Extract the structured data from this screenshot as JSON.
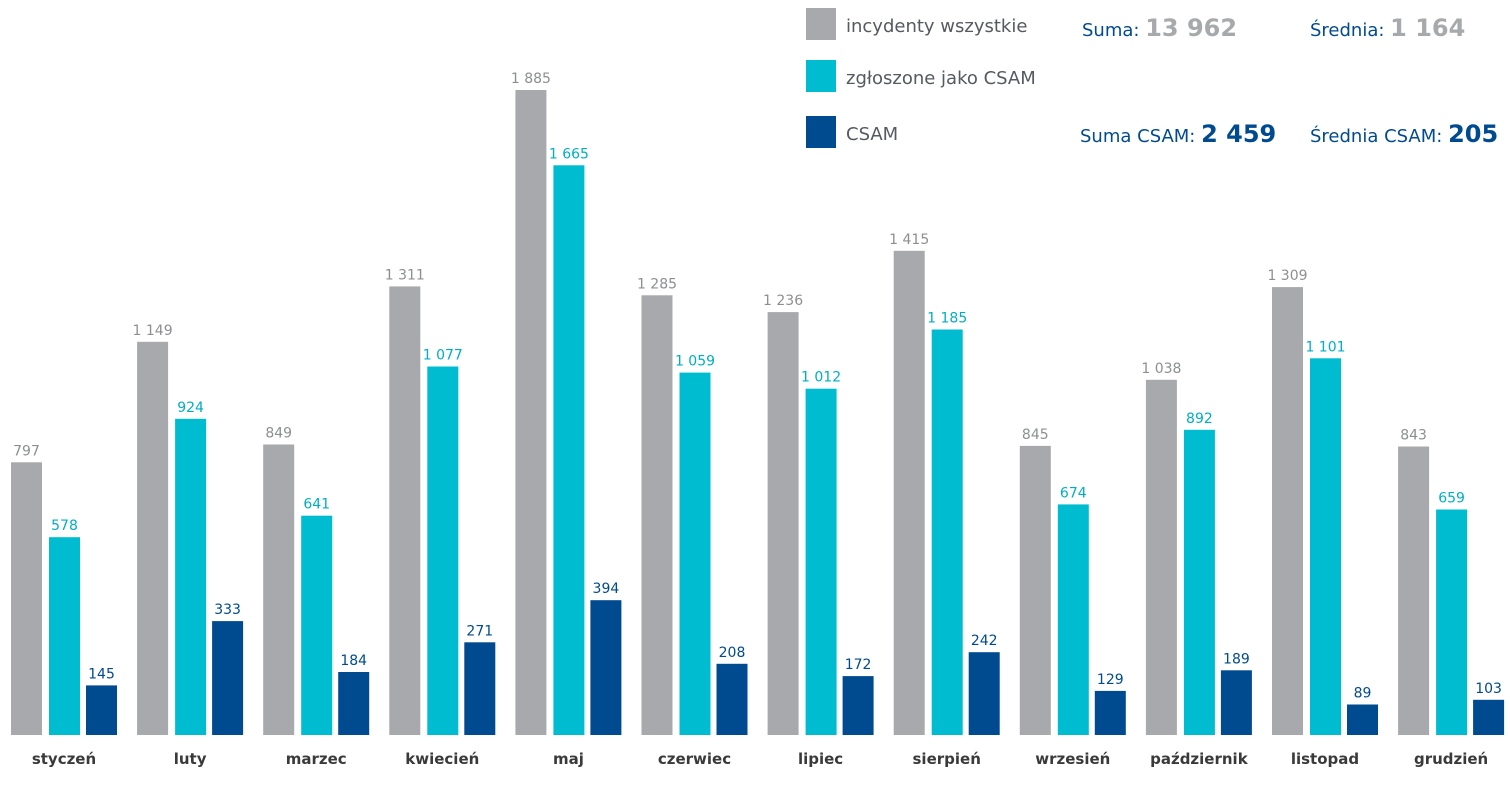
{
  "chart_data": {
    "type": "bar",
    "categories": [
      "styczeń",
      "luty",
      "marzec",
      "kwiecień",
      "maj",
      "czerwiec",
      "lipiec",
      "sierpień",
      "wrzesień",
      "październik",
      "listopad",
      "grudzień"
    ],
    "series": [
      {
        "name": "incydenty wszystkie",
        "color": "#a7a9ac",
        "label_color": "#8c8f92",
        "values": [
          797,
          1149,
          849,
          1311,
          1885,
          1285,
          1236,
          1415,
          845,
          1038,
          1309,
          843
        ],
        "labels": [
          "797",
          "1 149",
          "849",
          "1 311",
          "1 885",
          "1 285",
          "1 236",
          "1 415",
          "845",
          "1 038",
          "1 309",
          "843"
        ]
      },
      {
        "name": "zgłoszone jako CSAM",
        "color": "#00bcd0",
        "label_color": "#00aec3",
        "values": [
          578,
          924,
          641,
          1077,
          1665,
          1059,
          1012,
          1185,
          674,
          892,
          1101,
          659
        ],
        "labels": [
          "578",
          "924",
          "641",
          "1 077",
          "1 665",
          "1 059",
          "1 012",
          "1 185",
          "674",
          "892",
          "1 101",
          "659"
        ]
      },
      {
        "name": "CSAM",
        "color": "#004a8f",
        "label_color": "#004a8f",
        "values": [
          145,
          333,
          184,
          271,
          394,
          208,
          172,
          242,
          129,
          189,
          89,
          103
        ],
        "labels": [
          "145",
          "333",
          "184",
          "271",
          "394",
          "208",
          "172",
          "242",
          "129",
          "189",
          "89",
          "103"
        ]
      }
    ],
    "ylim": [
      0,
      1885
    ],
    "grid": false,
    "legend_position": "top-right"
  },
  "stats": {
    "suma_label": "Suma: ",
    "suma_value": "13 962",
    "srednia_label": "Średnia: ",
    "srednia_value": "1 164",
    "suma_csam_label": "Suma CSAM: ",
    "suma_csam_value": "2 459",
    "srednia_csam_label": "Średnia CSAM: ",
    "srednia_csam_value": "205",
    "gray_value_color": "#a7a9ac",
    "blue_value_color": "#004a8f",
    "label_color": "#004a8f"
  }
}
